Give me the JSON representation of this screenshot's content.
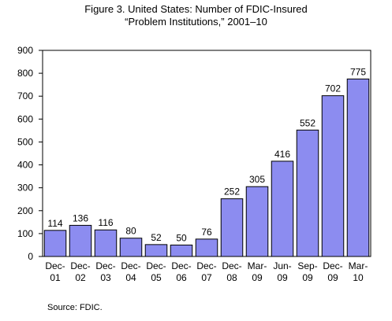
{
  "chart_data": {
    "type": "bar",
    "title": "Figure 3. United States: Number of FDIC-Insured",
    "subtitle": "“Problem Institutions,” 2001–10",
    "categories": [
      [
        "Dec-",
        "01"
      ],
      [
        "Dec-",
        "02"
      ],
      [
        "Dec-",
        "03"
      ],
      [
        "Dec-",
        "04"
      ],
      [
        "Dec-",
        "05"
      ],
      [
        "Dec-",
        "06"
      ],
      [
        "Dec-",
        "07"
      ],
      [
        "Dec-",
        "08"
      ],
      [
        "Mar-",
        "09"
      ],
      [
        "Jun-",
        "09"
      ],
      [
        "Sep-",
        "09"
      ],
      [
        "Dec-",
        "09"
      ],
      [
        "Mar-",
        "10"
      ]
    ],
    "values": [
      114,
      136,
      116,
      80,
      52,
      50,
      76,
      252,
      305,
      416,
      552,
      702,
      775
    ],
    "yticks": [
      0,
      100,
      200,
      300,
      400,
      500,
      600,
      700,
      800,
      900
    ],
    "ylim": [
      0,
      900
    ],
    "xlabel": "",
    "ylabel": "",
    "grid": false,
    "bar_color": "#8c8cf0",
    "bar_edge": "#000000"
  },
  "source": "Source: FDIC."
}
